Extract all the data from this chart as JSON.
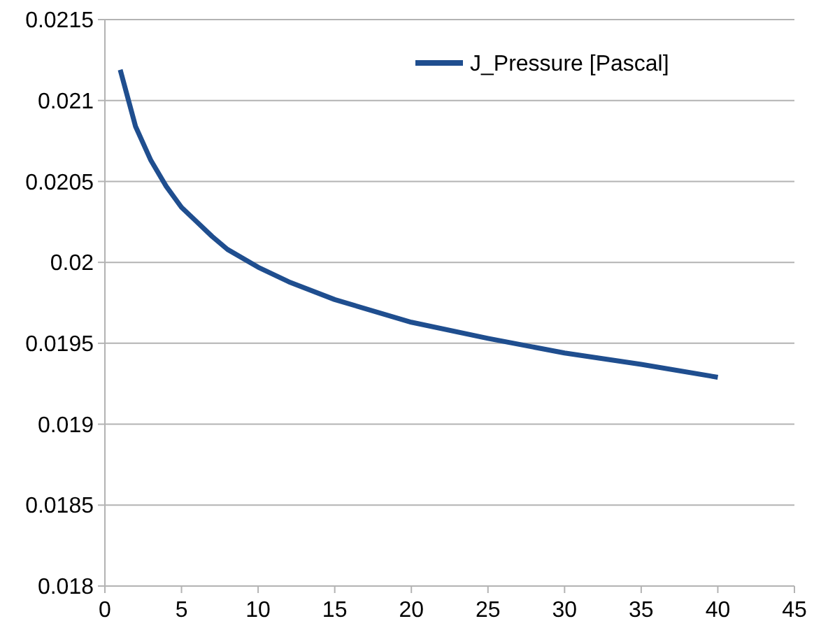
{
  "chart_data": {
    "type": "line",
    "x": [
      1,
      2,
      3,
      4,
      5,
      6,
      7,
      8,
      10,
      12,
      15,
      20,
      25,
      30,
      35,
      40
    ],
    "series": [
      {
        "name": "J_Pressure [Pascal]",
        "color": "#1f4e8f",
        "values": [
          0.02119,
          0.02084,
          0.02063,
          0.02047,
          0.02034,
          0.02025,
          0.02016,
          0.02008,
          0.01997,
          0.01988,
          0.01977,
          0.01963,
          0.01953,
          0.01944,
          0.01937,
          0.01929
        ]
      }
    ],
    "xlim": [
      0,
      45
    ],
    "xticks": [
      0,
      5,
      10,
      15,
      20,
      25,
      30,
      35,
      40,
      45
    ],
    "ylim": [
      0.018,
      0.0215
    ],
    "yticks": [
      0.018,
      0.0185,
      0.019,
      0.0195,
      0.02,
      0.0205,
      0.021,
      0.0215
    ],
    "grid": "y",
    "legend": "top right",
    "marker": "none",
    "line_style": "solid"
  }
}
